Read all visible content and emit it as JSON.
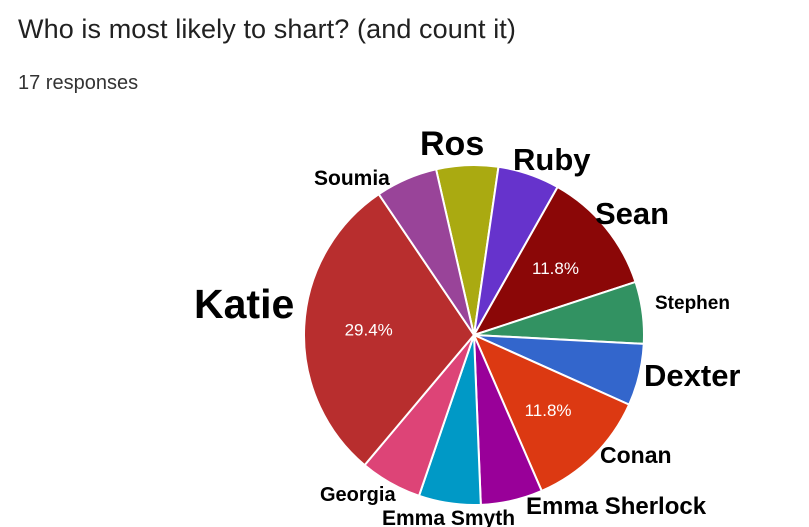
{
  "header": {
    "title": "Who is most likely to shart? (and count it)",
    "responses": "17 responses"
  },
  "chart_data": {
    "type": "pie",
    "slices": [
      {
        "label": "Ros",
        "value": 1,
        "color": "#aaaa11"
      },
      {
        "label": "Ruby",
        "value": 1,
        "color": "#6633cc"
      },
      {
        "label": "Sean",
        "value": 2,
        "color": "#8b0707",
        "pct_label": "11.8%"
      },
      {
        "label": "Stephen",
        "value": 1,
        "color": "#329262"
      },
      {
        "label": "Dexter",
        "value": 1,
        "color": "#3366cc"
      },
      {
        "label": "Conan",
        "value": 2,
        "color": "#dc3912",
        "pct_label": "11.8%"
      },
      {
        "label": "Emma Sherlock",
        "value": 1,
        "color": "#990099"
      },
      {
        "label": "Emma Smyth",
        "value": 1,
        "color": "#0099c6"
      },
      {
        "label": "Georgia",
        "value": 1,
        "color": "#dd4477"
      },
      {
        "label": "Katie",
        "value": 5,
        "color": "#b82e2e",
        "pct_label": "29.4%"
      },
      {
        "label": "Soumia",
        "value": 1,
        "color": "#994499"
      }
    ]
  }
}
